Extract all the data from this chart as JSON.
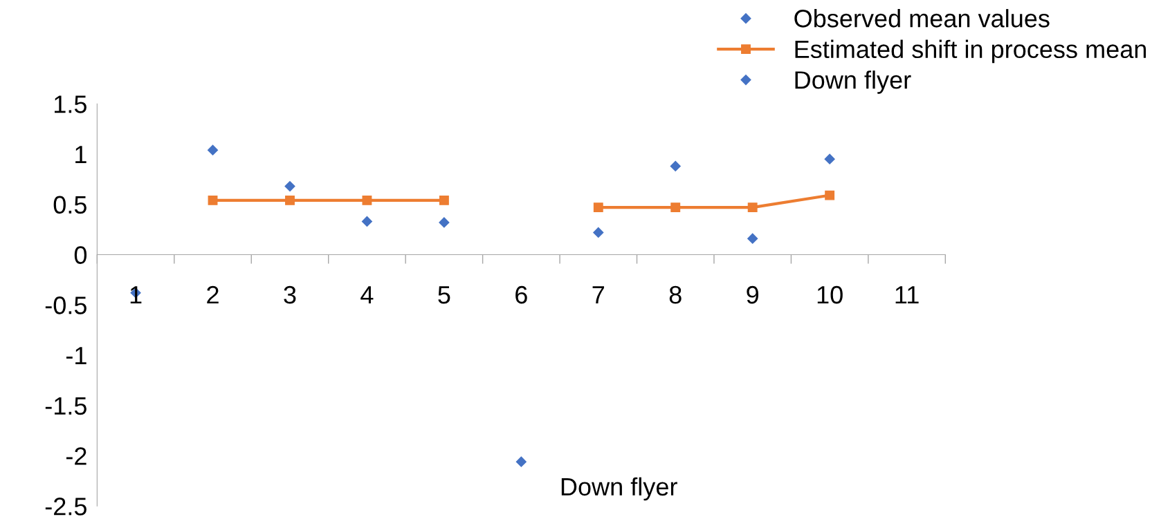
{
  "chart_data": {
    "type": "scatter",
    "categories": [
      "1",
      "2",
      "3",
      "4",
      "5",
      "6",
      "7",
      "8",
      "9",
      "10",
      "11"
    ],
    "series": [
      {
        "name": "Observed mean values",
        "color": "#4472c4",
        "marker": "diamond",
        "values": [
          -0.38,
          1.04,
          0.68,
          0.33,
          0.32,
          null,
          0.22,
          0.88,
          0.16,
          0.95,
          null
        ]
      },
      {
        "name": "Estimated shift in process mean",
        "type": "line",
        "color": "#ed7d31",
        "marker": "square",
        "values": [
          null,
          0.54,
          0.54,
          0.54,
          0.54,
          null,
          0.47,
          0.47,
          0.47,
          0.59,
          null
        ]
      },
      {
        "name": "Down flyer",
        "color": "#4472c4",
        "marker": "diamond",
        "values": [
          null,
          null,
          null,
          null,
          null,
          -2.06,
          null,
          null,
          null,
          null,
          null
        ]
      }
    ],
    "annotations": [
      {
        "text": "Down flyer",
        "x": "6",
        "y": -2.06
      }
    ],
    "ylim": [
      -2.5,
      1.5
    ],
    "yticks": [
      -2.5,
      -2,
      -1.5,
      -1,
      -0.5,
      0,
      0.5,
      1,
      1.5
    ],
    "grid": false,
    "legend": "top right"
  }
}
